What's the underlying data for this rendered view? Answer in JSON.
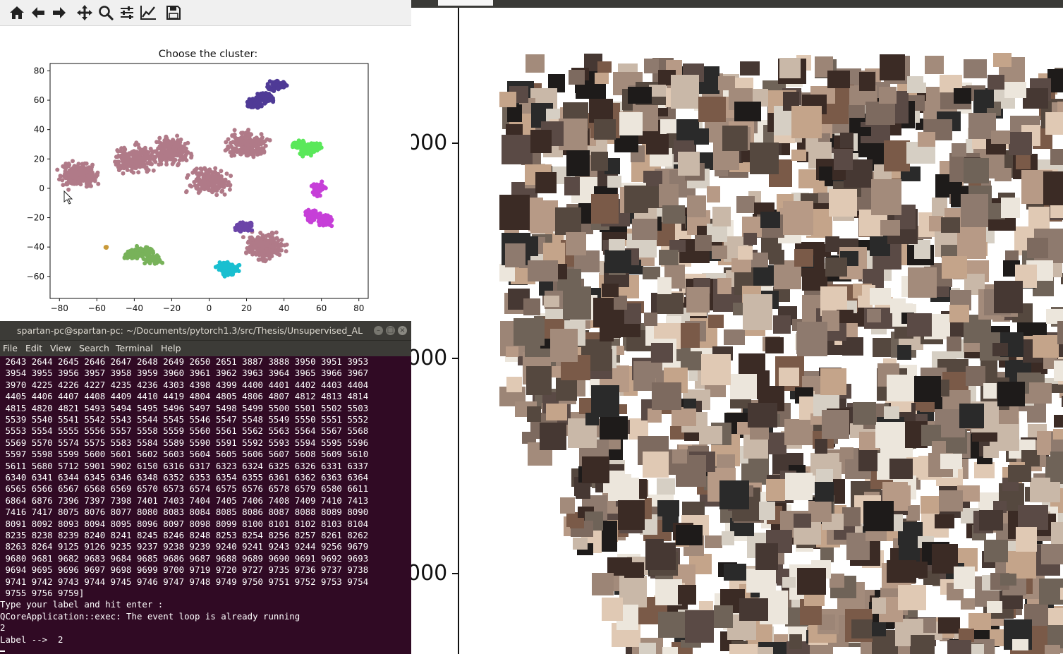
{
  "toolbar": {
    "buttons": [
      {
        "name": "home-button",
        "icon": "home-icon"
      },
      {
        "name": "back-button",
        "icon": "arrow-left-icon"
      },
      {
        "name": "forward-button",
        "icon": "arrow-right-icon"
      },
      {
        "name": "pan-button",
        "icon": "move-icon"
      },
      {
        "name": "zoom-button",
        "icon": "magnifier-icon"
      },
      {
        "name": "configure-subplots-button",
        "icon": "sliders-icon"
      },
      {
        "name": "edit-axis-button",
        "icon": "line-chart-icon"
      },
      {
        "name": "save-button",
        "icon": "floppy-icon"
      }
    ]
  },
  "chart_data": {
    "type": "scatter",
    "title": "Choose the cluster:",
    "xlabel": "",
    "ylabel": "",
    "xlim": [
      -85,
      85
    ],
    "ylim": [
      -75,
      85
    ],
    "xticks": [
      "−80",
      "−60",
      "−40",
      "−20",
      "0",
      "20",
      "40",
      "60",
      "80"
    ],
    "yticks": [
      "80",
      "60",
      "40",
      "20",
      "0",
      "−20",
      "−40",
      "−60"
    ],
    "xtick_values": [
      -80,
      -60,
      -40,
      -20,
      0,
      20,
      40,
      60,
      80
    ],
    "ytick_values": [
      80,
      60,
      40,
      20,
      0,
      -20,
      -40,
      -60
    ],
    "clusters": [
      {
        "color": "#b07a88",
        "x": [
          -70,
          -40,
          -20,
          0,
          20,
          30
        ],
        "y": [
          10,
          20,
          25,
          5,
          30,
          -40
        ]
      },
      {
        "color": "#4f3a96",
        "x": [
          30,
          36,
          24
        ],
        "y": [
          62,
          70,
          58
        ]
      },
      {
        "color": "#5ae85a",
        "x": [
          48,
          52,
          56
        ],
        "y": [
          30,
          25,
          28
        ]
      },
      {
        "color": "#c63fd8",
        "x": [
          55,
          62,
          58
        ],
        "y": [
          -18,
          -22,
          0
        ]
      },
      {
        "color": "#6b45a8",
        "x": [
          18,
          20
        ],
        "y": [
          -27,
          -25
        ]
      },
      {
        "color": "#78b25a",
        "x": [
          -40,
          -35,
          -30
        ],
        "y": [
          -45,
          -43,
          -48
        ]
      },
      {
        "color": "#19bfd0",
        "x": [
          8,
          12,
          10
        ],
        "y": [
          -53,
          -55,
          -57
        ]
      },
      {
        "color": "#c99a3a",
        "x": [
          -55
        ],
        "y": [
          -40
        ]
      }
    ]
  },
  "mosaic": {
    "yticks": [
      "000",
      "000",
      "000"
    ]
  },
  "terminal": {
    "title": "spartan-pc@spartan-pc: ~/Documents/pytorch1.3/src/Thesis/Unsupervised_AL",
    "menu": [
      "File",
      "Edit",
      "View",
      "Search",
      "Terminal",
      "Help"
    ],
    "lines": [
      " 2643 2644 2645 2646 2647 2648 2649 2650 2651 3887 3888 3950 3951 3953",
      " 3954 3955 3956 3957 3958 3959 3960 3961 3962 3963 3964 3965 3966 3967",
      " 3970 4225 4226 4227 4235 4236 4303 4398 4399 4400 4401 4402 4403 4404",
      " 4405 4406 4407 4408 4409 4410 4419 4804 4805 4806 4807 4812 4813 4814",
      " 4815 4820 4821 5493 5494 5495 5496 5497 5498 5499 5500 5501 5502 5503",
      " 5539 5540 5541 5542 5543 5544 5545 5546 5547 5548 5549 5550 5551 5552",
      " 5553 5554 5555 5556 5557 5558 5559 5560 5561 5562 5563 5564 5567 5568",
      " 5569 5570 5574 5575 5583 5584 5589 5590 5591 5592 5593 5594 5595 5596",
      " 5597 5598 5599 5600 5601 5602 5603 5604 5605 5606 5607 5608 5609 5610",
      " 5611 5680 5712 5901 5902 6150 6316 6317 6323 6324 6325 6326 6331 6337",
      " 6340 6341 6344 6345 6346 6348 6352 6353 6354 6355 6361 6362 6363 6364",
      " 6565 6566 6567 6568 6569 6570 6573 6574 6575 6576 6578 6579 6580 6611",
      " 6864 6876 7396 7397 7398 7401 7403 7404 7405 7406 7408 7409 7410 7413",
      " 7416 7417 8075 8076 8077 8080 8083 8084 8085 8086 8087 8088 8089 8090",
      " 8091 8092 8093 8094 8095 8096 8097 8098 8099 8100 8101 8102 8103 8104",
      " 8235 8238 8239 8240 8241 8245 8246 8248 8253 8254 8256 8257 8261 8262",
      " 8263 8264 9125 9126 9235 9237 9238 9239 9240 9241 9243 9244 9256 9679",
      " 9680 9681 9682 9683 9684 9685 9686 9687 9688 9689 9690 9691 9692 9693",
      " 9694 9695 9696 9697 9698 9699 9700 9719 9720 9727 9735 9736 9737 9738",
      " 9741 9742 9743 9744 9745 9746 9747 9748 9749 9750 9751 9752 9753 9754",
      " 9755 9756 9759]",
      "Type your label and hit enter :",
      "QCoreApplication::exec: The event loop is already running",
      "2",
      "Label -->  2"
    ]
  }
}
